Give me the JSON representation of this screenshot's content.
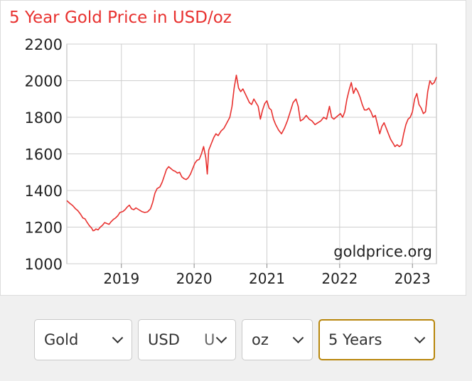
{
  "chart_data": {
    "type": "line",
    "title": "5 Year Gold Price in USD/oz",
    "watermark": "goldprice.org",
    "ylim": [
      1000,
      2200
    ],
    "yticks": [
      1000,
      1200,
      1400,
      1600,
      1800,
      2000,
      2200
    ],
    "x_range": [
      2018.25,
      2023.33
    ],
    "xticks": [
      2019,
      2020,
      2021,
      2022,
      2023
    ],
    "grid": true,
    "line_color": "#e8312f",
    "series": [
      {
        "values": [
          [
            2018.25,
            1345
          ],
          [
            2018.29,
            1330
          ],
          [
            2018.33,
            1318
          ],
          [
            2018.37,
            1300
          ],
          [
            2018.4,
            1290
          ],
          [
            2018.44,
            1270
          ],
          [
            2018.47,
            1250
          ],
          [
            2018.5,
            1245
          ],
          [
            2018.53,
            1225
          ],
          [
            2018.56,
            1208
          ],
          [
            2018.59,
            1195
          ],
          [
            2018.61,
            1180
          ],
          [
            2018.63,
            1182
          ],
          [
            2018.65,
            1190
          ],
          [
            2018.68,
            1185
          ],
          [
            2018.71,
            1200
          ],
          [
            2018.74,
            1210
          ],
          [
            2018.77,
            1225
          ],
          [
            2018.8,
            1220
          ],
          [
            2018.83,
            1215
          ],
          [
            2018.86,
            1230
          ],
          [
            2018.89,
            1242
          ],
          [
            2018.92,
            1250
          ],
          [
            2018.95,
            1262
          ],
          [
            2018.98,
            1280
          ],
          [
            2019.02,
            1285
          ],
          [
            2019.05,
            1295
          ],
          [
            2019.08,
            1310
          ],
          [
            2019.11,
            1320
          ],
          [
            2019.14,
            1300
          ],
          [
            2019.17,
            1295
          ],
          [
            2019.2,
            1305
          ],
          [
            2019.24,
            1295
          ],
          [
            2019.28,
            1285
          ],
          [
            2019.32,
            1280
          ],
          [
            2019.36,
            1283
          ],
          [
            2019.4,
            1300
          ],
          [
            2019.43,
            1335
          ],
          [
            2019.46,
            1385
          ],
          [
            2019.49,
            1410
          ],
          [
            2019.53,
            1420
          ],
          [
            2019.56,
            1445
          ],
          [
            2019.59,
            1480
          ],
          [
            2019.62,
            1515
          ],
          [
            2019.65,
            1530
          ],
          [
            2019.68,
            1520
          ],
          [
            2019.71,
            1510
          ],
          [
            2019.74,
            1505
          ],
          [
            2019.77,
            1495
          ],
          [
            2019.8,
            1500
          ],
          [
            2019.83,
            1475
          ],
          [
            2019.86,
            1465
          ],
          [
            2019.89,
            1460
          ],
          [
            2019.92,
            1470
          ],
          [
            2019.95,
            1490
          ],
          [
            2019.98,
            1520
          ],
          [
            2020.01,
            1550
          ],
          [
            2020.04,
            1565
          ],
          [
            2020.07,
            1570
          ],
          [
            2020.1,
            1600
          ],
          [
            2020.13,
            1640
          ],
          [
            2020.16,
            1580
          ],
          [
            2020.18,
            1490
          ],
          [
            2020.2,
            1620
          ],
          [
            2020.24,
            1660
          ],
          [
            2020.27,
            1690
          ],
          [
            2020.3,
            1710
          ],
          [
            2020.33,
            1700
          ],
          [
            2020.37,
            1725
          ],
          [
            2020.41,
            1740
          ],
          [
            2020.45,
            1770
          ],
          [
            2020.49,
            1800
          ],
          [
            2020.52,
            1860
          ],
          [
            2020.55,
            1960
          ],
          [
            2020.58,
            2030
          ],
          [
            2020.61,
            1960
          ],
          [
            2020.64,
            1940
          ],
          [
            2020.67,
            1955
          ],
          [
            2020.7,
            1930
          ],
          [
            2020.73,
            1905
          ],
          [
            2020.76,
            1880
          ],
          [
            2020.79,
            1870
          ],
          [
            2020.82,
            1900
          ],
          [
            2020.85,
            1880
          ],
          [
            2020.88,
            1860
          ],
          [
            2020.91,
            1790
          ],
          [
            2020.94,
            1840
          ],
          [
            2020.97,
            1875
          ],
          [
            2021.0,
            1890
          ],
          [
            2021.03,
            1850
          ],
          [
            2021.06,
            1840
          ],
          [
            2021.09,
            1790
          ],
          [
            2021.12,
            1760
          ],
          [
            2021.16,
            1730
          ],
          [
            2021.2,
            1710
          ],
          [
            2021.24,
            1740
          ],
          [
            2021.28,
            1780
          ],
          [
            2021.32,
            1830
          ],
          [
            2021.36,
            1880
          ],
          [
            2021.4,
            1900
          ],
          [
            2021.43,
            1860
          ],
          [
            2021.46,
            1780
          ],
          [
            2021.5,
            1790
          ],
          [
            2021.54,
            1810
          ],
          [
            2021.58,
            1790
          ],
          [
            2021.62,
            1780
          ],
          [
            2021.66,
            1760
          ],
          [
            2021.7,
            1770
          ],
          [
            2021.74,
            1780
          ],
          [
            2021.78,
            1800
          ],
          [
            2021.82,
            1790
          ],
          [
            2021.86,
            1860
          ],
          [
            2021.89,
            1800
          ],
          [
            2021.92,
            1790
          ],
          [
            2021.95,
            1800
          ],
          [
            2021.98,
            1810
          ],
          [
            2022.01,
            1820
          ],
          [
            2022.04,
            1800
          ],
          [
            2022.07,
            1830
          ],
          [
            2022.1,
            1900
          ],
          [
            2022.13,
            1950
          ],
          [
            2022.16,
            1990
          ],
          [
            2022.19,
            1930
          ],
          [
            2022.22,
            1960
          ],
          [
            2022.25,
            1940
          ],
          [
            2022.28,
            1910
          ],
          [
            2022.31,
            1870
          ],
          [
            2022.34,
            1840
          ],
          [
            2022.37,
            1840
          ],
          [
            2022.4,
            1850
          ],
          [
            2022.43,
            1830
          ],
          [
            2022.46,
            1800
          ],
          [
            2022.49,
            1810
          ],
          [
            2022.52,
            1760
          ],
          [
            2022.55,
            1710
          ],
          [
            2022.58,
            1750
          ],
          [
            2022.61,
            1770
          ],
          [
            2022.64,
            1740
          ],
          [
            2022.67,
            1710
          ],
          [
            2022.7,
            1680
          ],
          [
            2022.73,
            1660
          ],
          [
            2022.76,
            1640
          ],
          [
            2022.79,
            1650
          ],
          [
            2022.82,
            1640
          ],
          [
            2022.85,
            1650
          ],
          [
            2022.88,
            1710
          ],
          [
            2022.91,
            1760
          ],
          [
            2022.94,
            1790
          ],
          [
            2022.97,
            1800
          ],
          [
            2023.0,
            1830
          ],
          [
            2023.03,
            1900
          ],
          [
            2023.06,
            1930
          ],
          [
            2023.09,
            1870
          ],
          [
            2023.12,
            1850
          ],
          [
            2023.15,
            1820
          ],
          [
            2023.18,
            1830
          ],
          [
            2023.21,
            1940
          ],
          [
            2023.24,
            2000
          ],
          [
            2023.27,
            1980
          ],
          [
            2023.3,
            1990
          ],
          [
            2023.33,
            2020
          ]
        ]
      }
    ]
  },
  "controls": {
    "metal": "Gold",
    "currency": "USD",
    "currency_hint": "U",
    "unit": "oz",
    "range": "5 Years"
  }
}
